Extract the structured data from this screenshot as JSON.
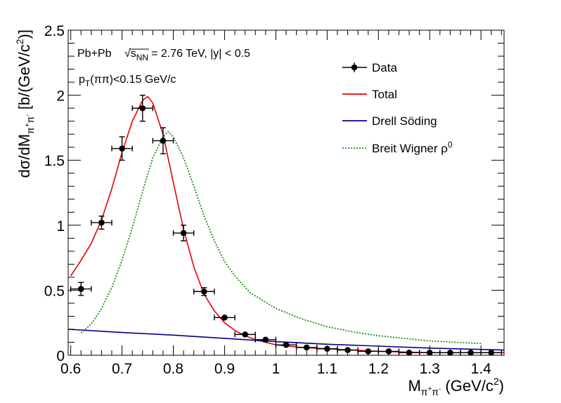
{
  "chart_data": {
    "type": "scatter",
    "title": "",
    "annotations": {
      "line1_prefix": "Pb+Pb",
      "line1_sqrt_s": "s",
      "line1_sqrt_sub": "NN",
      "line1_suffix": "= 2.76 TeV, |y| < 0.5",
      "line2_prefix": "p",
      "line2_sub": "T",
      "line2_suffix": "(ππ)<0.15 GeV/c"
    },
    "xlabel": {
      "main": "M",
      "sub": "π",
      "sub_sup1": "+",
      "sub2": "π",
      "sub_sup2": "-",
      "rest": " (GeV/c",
      "sup": "2",
      "end": ")"
    },
    "ylabel": {
      "main": "dσ/dM",
      "sub": "π",
      "sub_sup1": "+",
      "sub2": "π",
      "sub_sup2": "-",
      "rest": " [b/(GeV/c",
      "sup": "2",
      "end": ")]"
    },
    "xlim": [
      0.595,
      1.445
    ],
    "ylim": [
      0,
      2.5
    ],
    "x_ticks": [
      0.6,
      0.7,
      0.8,
      0.9,
      1.0,
      1.1,
      1.2,
      1.3,
      1.4
    ],
    "x_tick_labels": [
      "0.6",
      "0.7",
      "0.8",
      "0.9",
      "1",
      "1.1",
      "1.2",
      "1.3",
      "1.4"
    ],
    "y_ticks": [
      0,
      0.5,
      1.0,
      1.5,
      2.0,
      2.5
    ],
    "y_tick_labels": [
      "0",
      "0.5",
      "1",
      "1.5",
      "2",
      "2.5"
    ],
    "series": [
      {
        "name": "Data",
        "kind": "points",
        "color": "#000000",
        "x": [
          0.62,
          0.66,
          0.7,
          0.74,
          0.78,
          0.82,
          0.86,
          0.9,
          0.94,
          0.98,
          1.02,
          1.06,
          1.1,
          1.14,
          1.18,
          1.22,
          1.26,
          1.3,
          1.34,
          1.38,
          1.42
        ],
        "y": [
          0.51,
          1.02,
          1.59,
          1.9,
          1.65,
          0.94,
          0.49,
          0.29,
          0.16,
          0.12,
          0.08,
          0.06,
          0.05,
          0.04,
          0.03,
          0.03,
          0.02,
          0.02,
          0.02,
          0.02,
          0.02
        ],
        "x_err": [
          0.02,
          0.02,
          0.02,
          0.02,
          0.02,
          0.02,
          0.02,
          0.02,
          0.02,
          0.02,
          0.02,
          0.02,
          0.02,
          0.02,
          0.02,
          0.02,
          0.02,
          0.02,
          0.02,
          0.02,
          0.02
        ],
        "y_err": [
          0.05,
          0.05,
          0.09,
          0.1,
          0.1,
          0.06,
          0.03,
          0.02,
          0.01,
          0.01,
          0.01,
          0.01,
          0.01,
          0.01,
          0.01,
          0.01,
          0.01,
          0.01,
          0.01,
          0.01,
          0.01
        ]
      },
      {
        "name": "Total",
        "kind": "line",
        "color": "#e60000",
        "style": "solid",
        "x": [
          0.6,
          0.62,
          0.64,
          0.66,
          0.68,
          0.7,
          0.72,
          0.74,
          0.75,
          0.76,
          0.78,
          0.8,
          0.82,
          0.84,
          0.86,
          0.88,
          0.9,
          0.92,
          0.94,
          0.96,
          0.98,
          1.0,
          1.05,
          1.1,
          1.15,
          1.2,
          1.3,
          1.4,
          1.445
        ],
        "y": [
          0.61,
          0.73,
          0.86,
          1.04,
          1.28,
          1.56,
          1.8,
          1.96,
          1.99,
          1.94,
          1.7,
          1.33,
          0.97,
          0.68,
          0.47,
          0.34,
          0.25,
          0.19,
          0.15,
          0.12,
          0.1,
          0.08,
          0.06,
          0.05,
          0.04,
          0.03,
          0.02,
          0.02,
          0.02
        ]
      },
      {
        "name": "Drell Söding",
        "kind": "line",
        "color": "#00008c",
        "style": "solid",
        "x": [
          0.595,
          0.7,
          0.8,
          0.9,
          1.0,
          1.1,
          1.2,
          1.3,
          1.4,
          1.445
        ],
        "y": [
          0.2,
          0.175,
          0.155,
          0.13,
          0.105,
          0.085,
          0.07,
          0.055,
          0.045,
          0.04
        ]
      },
      {
        "name": "Breit Wigner ρ",
        "legend_sup": "0",
        "kind": "line",
        "color": "#1a8c1a",
        "style": "dotted",
        "x": [
          0.62,
          0.64,
          0.66,
          0.68,
          0.7,
          0.72,
          0.74,
          0.76,
          0.78,
          0.79,
          0.8,
          0.82,
          0.84,
          0.86,
          0.88,
          0.9,
          0.92,
          0.95,
          1.0,
          1.05,
          1.1,
          1.15,
          1.2,
          1.25,
          1.3,
          1.35,
          1.4
        ],
        "y": [
          0.17,
          0.24,
          0.36,
          0.52,
          0.73,
          0.98,
          1.26,
          1.52,
          1.68,
          1.72,
          1.68,
          1.52,
          1.3,
          1.07,
          0.88,
          0.72,
          0.61,
          0.48,
          0.36,
          0.28,
          0.22,
          0.18,
          0.15,
          0.13,
          0.11,
          0.1,
          0.09
        ]
      }
    ],
    "legend": {
      "placement": "top-right",
      "entries": [
        "Data",
        "Total",
        "Drell Söding",
        "Breit Wigner ρ"
      ]
    }
  }
}
